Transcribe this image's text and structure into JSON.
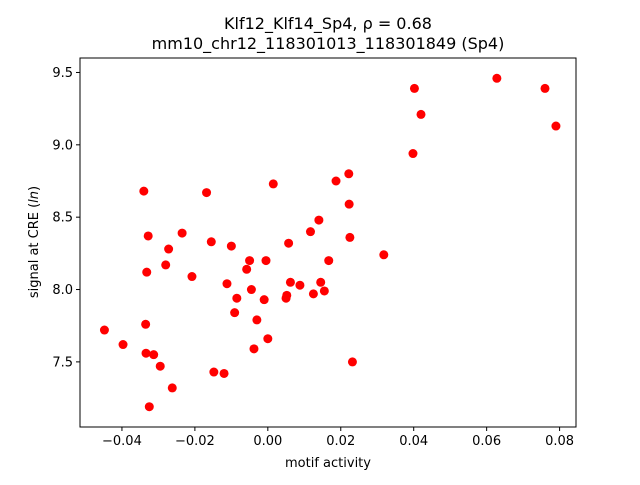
{
  "chart_data": {
    "type": "scatter",
    "title": "Klf12_Klf14_Sp4, ρ = 0.68",
    "subtitle": "mm10_chr12_118301013_118301849 (Sp4)",
    "xlabel": "motif activity",
    "ylabel_prefix": "signal at CRE (",
    "ylabel_italic": "ln",
    "ylabel_suffix": ")",
    "xlim": [
      -0.0515,
      0.0845
    ],
    "ylim": [
      7.05,
      9.6
    ],
    "xticks": [
      -0.04,
      -0.02,
      0.0,
      0.02,
      0.04,
      0.06,
      0.08
    ],
    "xtick_labels": [
      "−0.04",
      "−0.02",
      "0.00",
      "0.02",
      "0.04",
      "0.06",
      "0.08"
    ],
    "yticks": [
      7.5,
      8.0,
      8.5,
      9.0,
      9.5
    ],
    "ytick_labels": [
      "7.5",
      "8.0",
      "8.5",
      "9.0",
      "9.5"
    ],
    "grid": false,
    "marker_color": "#ff0000",
    "points": [
      {
        "x": -0.0448,
        "y": 7.72
      },
      {
        "x": -0.0397,
        "y": 7.62
      },
      {
        "x": -0.034,
        "y": 8.68
      },
      {
        "x": -0.0335,
        "y": 7.76
      },
      {
        "x": -0.0334,
        "y": 7.56
      },
      {
        "x": -0.0332,
        "y": 8.12
      },
      {
        "x": -0.0328,
        "y": 8.37
      },
      {
        "x": -0.0325,
        "y": 7.19
      },
      {
        "x": -0.0313,
        "y": 7.55
      },
      {
        "x": -0.0295,
        "y": 7.47
      },
      {
        "x": -0.028,
        "y": 8.17
      },
      {
        "x": -0.0272,
        "y": 8.28
      },
      {
        "x": -0.0262,
        "y": 7.32
      },
      {
        "x": -0.0235,
        "y": 8.39
      },
      {
        "x": -0.0208,
        "y": 8.09
      },
      {
        "x": -0.0168,
        "y": 8.67
      },
      {
        "x": -0.0155,
        "y": 8.33
      },
      {
        "x": -0.0148,
        "y": 7.43
      },
      {
        "x": -0.012,
        "y": 7.42
      },
      {
        "x": -0.0112,
        "y": 8.04
      },
      {
        "x": -0.01,
        "y": 8.3
      },
      {
        "x": -0.0091,
        "y": 7.84
      },
      {
        "x": -0.0085,
        "y": 7.94
      },
      {
        "x": -0.0058,
        "y": 8.14
      },
      {
        "x": -0.005,
        "y": 8.2
      },
      {
        "x": -0.0045,
        "y": 8.0
      },
      {
        "x": -0.0038,
        "y": 7.59
      },
      {
        "x": -0.003,
        "y": 7.79
      },
      {
        "x": -0.001,
        "y": 7.93
      },
      {
        "x": -0.0005,
        "y": 8.2
      },
      {
        "x": 0.0,
        "y": 7.66
      },
      {
        "x": 0.0015,
        "y": 8.73
      },
      {
        "x": 0.005,
        "y": 7.94
      },
      {
        "x": 0.0052,
        "y": 7.96
      },
      {
        "x": 0.0057,
        "y": 8.32
      },
      {
        "x": 0.0062,
        "y": 8.05
      },
      {
        "x": 0.0088,
        "y": 8.03
      },
      {
        "x": 0.0117,
        "y": 8.4
      },
      {
        "x": 0.0125,
        "y": 7.97
      },
      {
        "x": 0.014,
        "y": 8.48
      },
      {
        "x": 0.0145,
        "y": 8.05
      },
      {
        "x": 0.0155,
        "y": 7.99
      },
      {
        "x": 0.0167,
        "y": 8.2
      },
      {
        "x": 0.0187,
        "y": 8.75
      },
      {
        "x": 0.0222,
        "y": 8.8
      },
      {
        "x": 0.0223,
        "y": 8.59
      },
      {
        "x": 0.0225,
        "y": 8.36
      },
      {
        "x": 0.0232,
        "y": 7.5
      },
      {
        "x": 0.0318,
        "y": 8.24
      },
      {
        "x": 0.0398,
        "y": 8.94
      },
      {
        "x": 0.0402,
        "y": 9.39
      },
      {
        "x": 0.042,
        "y": 9.21
      },
      {
        "x": 0.0628,
        "y": 9.46
      },
      {
        "x": 0.076,
        "y": 9.39
      },
      {
        "x": 0.079,
        "y": 9.13
      }
    ]
  }
}
